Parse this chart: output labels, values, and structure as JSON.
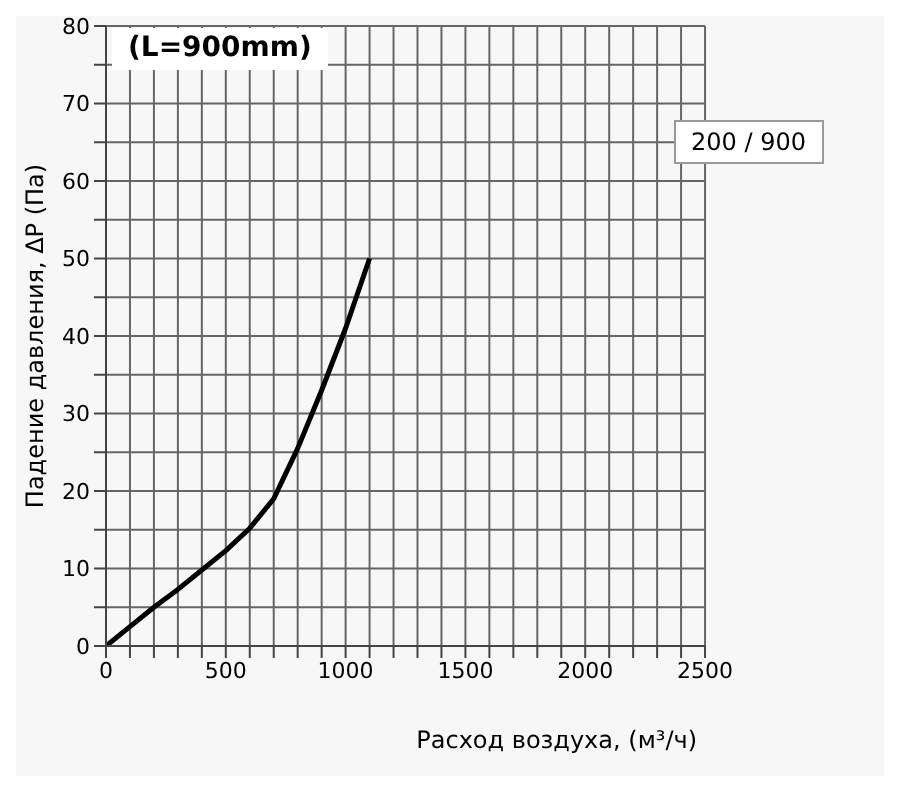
{
  "chart_data": {
    "type": "line",
    "title": "(L=900mm)",
    "xlabel": "Расход воздуха, (м³/ч)",
    "ylabel": "Падение давления, ΔP (Па)",
    "x": [
      0,
      100,
      200,
      300,
      400,
      500,
      600,
      700,
      800,
      900,
      1000,
      1100
    ],
    "series": [
      {
        "name": "200 / 900",
        "color": "#000000",
        "values": [
          0,
          2.5,
          5,
          7.3,
          9.8,
          12.3,
          15.2,
          19,
          25.5,
          33,
          41,
          50
        ]
      }
    ],
    "xlim": [
      0,
      2500
    ],
    "xticks": [
      0,
      {
        "value": 100,
        "label": null
      },
      {
        "value": 200,
        "label": null
      },
      {
        "value": 300,
        "label": null
      },
      {
        "value": 400,
        "label": null
      },
      500,
      {
        "value": 600,
        "label": null
      },
      {
        "value": 700,
        "label": null
      },
      {
        "value": 800,
        "label": null
      },
      {
        "value": 900,
        "label": null
      },
      1000,
      {
        "value": 1100,
        "label": null
      },
      {
        "value": 1200,
        "label": null
      },
      {
        "value": 1300,
        "label": null
      },
      {
        "value": 1400,
        "label": null
      },
      1500,
      {
        "value": 1600,
        "label": null
      },
      {
        "value": 1700,
        "label": null
      },
      {
        "value": 1800,
        "label": null
      },
      {
        "value": 1900,
        "label": null
      },
      2000,
      {
        "value": 2100,
        "label": null
      },
      {
        "value": 2200,
        "label": null
      },
      {
        "value": 2300,
        "label": null
      },
      {
        "value": 2400,
        "label": null
      },
      2500
    ],
    "ylim": [
      0,
      80
    ],
    "yticks": [
      0,
      {
        "value": 5,
        "label": null
      },
      10,
      {
        "value": 15,
        "label": null
      },
      20,
      {
        "value": 25,
        "label": null
      },
      30,
      {
        "value": 35,
        "label": null
      },
      40,
      {
        "value": 45,
        "label": null
      },
      50,
      {
        "value": 55,
        "label": null
      },
      60,
      {
        "value": 65,
        "label": null
      },
      70,
      {
        "value": 75,
        "label": null
      },
      80
    ],
    "grid": true,
    "legend": "top right",
    "marker": "none",
    "line_style": "solid"
  }
}
